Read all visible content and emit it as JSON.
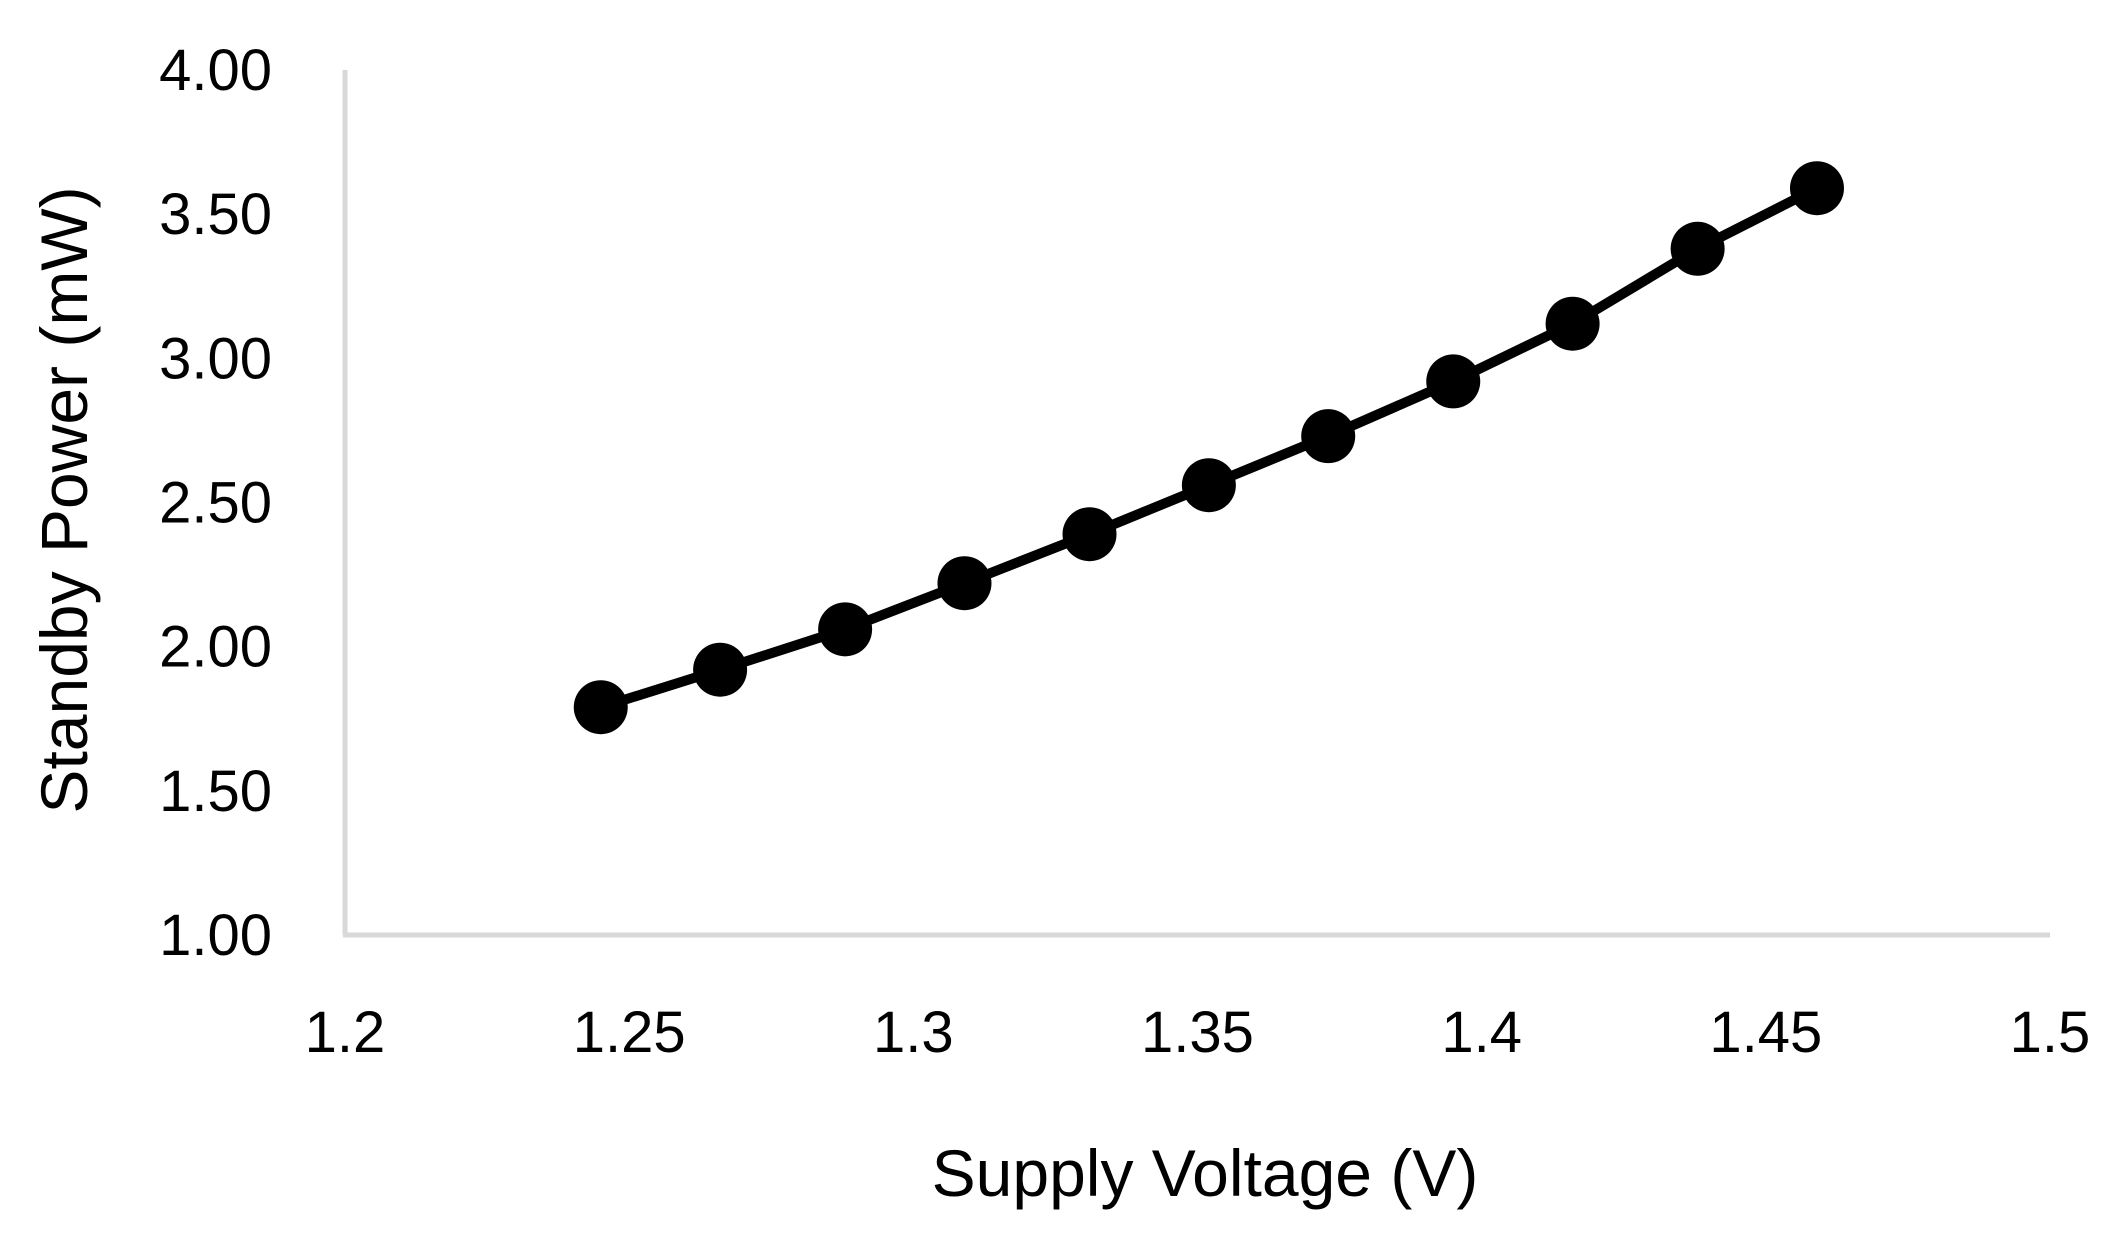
{
  "chart_data": {
    "type": "line",
    "title": "",
    "xlabel": "Supply Voltage (V)",
    "ylabel": "Standby Power (mW)",
    "xlim": [
      1.2,
      1.5
    ],
    "ylim": [
      1.0,
      4.0
    ],
    "x_ticks": [
      1.2,
      1.25,
      1.3,
      1.35,
      1.4,
      1.45,
      1.5
    ],
    "x_tick_labels": [
      "1.2",
      "1.25",
      "1.3",
      "1.35",
      "1.4",
      "1.45",
      "1.5"
    ],
    "y_ticks": [
      1.0,
      1.5,
      2.0,
      2.5,
      3.0,
      3.5,
      4.0
    ],
    "y_tick_labels": [
      "1.00",
      "1.50",
      "2.00",
      "2.50",
      "3.00",
      "3.50",
      "4.00"
    ],
    "grid": false,
    "legend": "none",
    "series": [
      {
        "color": "#000000",
        "marker": "circle",
        "x": [
          1.245,
          1.266,
          1.288,
          1.309,
          1.331,
          1.352,
          1.373,
          1.395,
          1.416,
          1.438,
          1.459
        ],
        "y": [
          1.79,
          1.92,
          2.06,
          2.22,
          2.39,
          2.56,
          2.73,
          2.92,
          3.12,
          3.38,
          3.59
        ]
      }
    ],
    "axis_color": "#d9d9d9"
  }
}
